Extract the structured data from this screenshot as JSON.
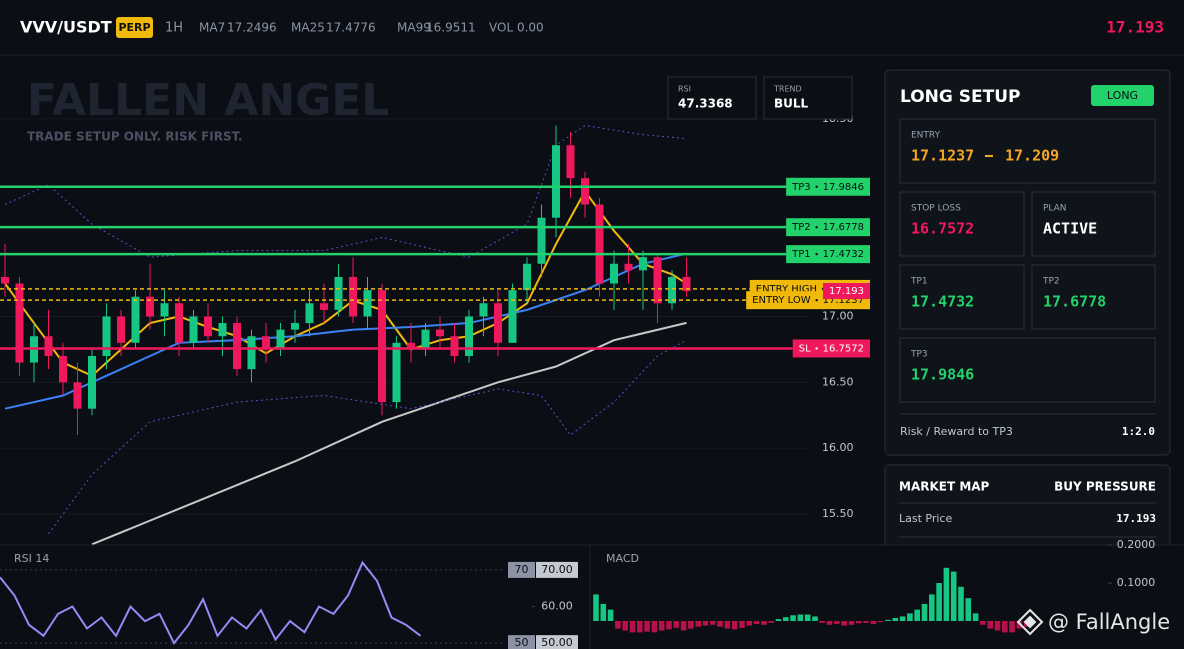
{
  "header": {
    "symbol": "VVV/USDT",
    "badge": "PERP",
    "interval": "1H",
    "volume": "VOL 0.00"
  },
  "stats": [
    {
      "label": "RSI",
      "value": "47.3368"
    },
    {
      "label": "TREND",
      "value": "BULL"
    }
  ],
  "setup": {
    "title": "LONG SETUP",
    "side": "LONG",
    "entry_label": "ENTRY",
    "plan_label": "PLAN",
    "plan": "ACTIVE",
    "stop_label": "STOP LOSS",
    "rr_label": "Risk / Reward to TP3",
    "rr": "1:2.0"
  },
  "market_map": {
    "title": "MARKET MAP",
    "signal": "BUY PRESSURE",
    "last_label": "Last Price"
  },
  "watermark": "@ FallAngle",
  "chart_data": [
    {
      "type": "candlestick",
      "title": "FALLEN ANGEL",
      "subtitle": "TRADE SETUP ONLY. RISK FIRST.",
      "open": [
        17.3,
        17.25,
        16.65,
        16.85,
        16.7,
        16.5,
        16.3,
        16.7,
        17.0,
        16.8,
        17.15,
        17.0,
        17.1,
        16.8,
        17.0,
        16.85,
        16.95,
        16.6,
        16.85,
        16.75,
        16.9,
        16.95,
        17.1,
        17.05,
        17.3,
        17.0,
        17.2,
        16.35,
        16.8,
        16.75,
        16.9,
        16.85,
        16.7,
        17.0,
        17.1,
        16.8,
        17.2,
        17.4,
        17.75,
        18.3,
        18.05,
        17.85,
        17.25,
        17.4,
        17.35,
        17.45,
        17.1,
        17.3
      ],
      "high": [
        17.55,
        17.3,
        16.95,
        17.05,
        16.8,
        16.65,
        16.75,
        17.1,
        17.05,
        17.2,
        17.4,
        17.2,
        17.15,
        17.05,
        17.1,
        17.0,
        17.0,
        16.9,
        16.95,
        16.95,
        17.05,
        17.2,
        17.25,
        17.4,
        17.45,
        17.3,
        17.25,
        16.85,
        16.95,
        16.95,
        17.0,
        16.95,
        17.05,
        17.15,
        17.2,
        17.25,
        17.45,
        17.85,
        18.45,
        18.4,
        18.1,
        17.9,
        17.5,
        17.55,
        17.5,
        17.48,
        17.35,
        17.45
      ],
      "low": [
        17.15,
        16.55,
        16.5,
        16.6,
        16.4,
        16.1,
        16.25,
        16.6,
        16.7,
        16.75,
        16.9,
        16.85,
        16.7,
        16.75,
        16.8,
        16.7,
        16.55,
        16.5,
        16.65,
        16.7,
        16.8,
        16.85,
        16.95,
        17.0,
        16.95,
        16.9,
        16.25,
        16.3,
        16.65,
        16.7,
        16.75,
        16.65,
        16.65,
        16.85,
        16.7,
        16.8,
        17.1,
        17.3,
        17.6,
        17.9,
        17.75,
        17.15,
        17.05,
        17.25,
        17.05,
        16.95,
        17.05,
        17.15
      ],
      "close": [
        17.25,
        16.65,
        16.85,
        16.7,
        16.5,
        16.3,
        16.7,
        17.0,
        16.8,
        17.15,
        17.0,
        17.1,
        16.8,
        17.0,
        16.85,
        16.95,
        16.6,
        16.85,
        16.75,
        16.9,
        16.95,
        17.1,
        17.05,
        17.3,
        17.0,
        17.2,
        16.35,
        16.8,
        16.75,
        16.9,
        16.85,
        16.7,
        17.0,
        17.1,
        16.8,
        17.2,
        17.4,
        17.75,
        18.3,
        18.05,
        17.85,
        17.25,
        17.4,
        17.35,
        17.45,
        17.1,
        17.3,
        17.193
      ],
      "up_color": "#16c784",
      "down_color": "#f0185c",
      "ylim": [
        15.265,
        18.985
      ],
      "yticks": [
        {
          "value": 15.5,
          "label": "15.50"
        },
        {
          "value": 16,
          "label": "16.00"
        },
        {
          "value": 16.5,
          "label": "16.50"
        },
        {
          "value": 17,
          "label": "17.00"
        },
        {
          "value": 18.5,
          "label": "18.50"
        }
      ],
      "overlays": [
        {
          "name": "MA7",
          "color": "#f0b90b",
          "x": [
            0,
            2,
            4,
            6,
            8,
            10,
            12,
            14,
            16,
            18,
            20,
            22,
            24,
            26,
            28,
            30,
            32,
            34,
            36,
            38,
            40,
            42,
            44,
            46,
            47
          ],
          "values": [
            17.25,
            16.95,
            16.65,
            16.55,
            16.75,
            16.95,
            17.0,
            16.92,
            16.85,
            16.72,
            16.85,
            16.95,
            17.12,
            17.05,
            16.75,
            16.82,
            16.85,
            16.95,
            17.1,
            17.55,
            17.95,
            17.65,
            17.4,
            17.32,
            17.2496
          ]
        },
        {
          "name": "MA25",
          "color": "#3b82f6",
          "x": [
            0,
            4,
            8,
            12,
            16,
            20,
            24,
            28,
            32,
            36,
            40,
            44,
            47
          ],
          "values": [
            16.3,
            16.4,
            16.6,
            16.8,
            16.82,
            16.85,
            16.9,
            16.92,
            16.95,
            17.05,
            17.2,
            17.4,
            17.4776
          ]
        },
        {
          "name": "MA99",
          "color": "#c8c8c8",
          "x": [
            6,
            10,
            16,
            20,
            26,
            30,
            34,
            38,
            42,
            47
          ],
          "values": [
            15.27,
            15.45,
            15.72,
            15.9,
            16.2,
            16.35,
            16.5,
            16.62,
            16.82,
            16.9511
          ]
        },
        {
          "color": "#5b4fc4",
          "dash": true,
          "x": [
            0,
            3,
            6,
            10,
            16,
            22,
            26,
            32,
            36,
            38,
            40,
            44,
            47
          ],
          "values": [
            17.85,
            18.0,
            17.7,
            17.45,
            17.5,
            17.5,
            17.6,
            17.45,
            17.7,
            18.3,
            18.45,
            18.38,
            18.35
          ]
        },
        {
          "color": "#5b4fc4",
          "dash": true,
          "x": [
            3,
            6,
            10,
            16,
            22,
            28,
            34,
            37,
            39,
            42,
            45,
            47
          ],
          "values": [
            15.35,
            15.8,
            16.2,
            16.35,
            16.4,
            16.3,
            16.45,
            16.4,
            16.1,
            16.35,
            16.7,
            16.82
          ]
        }
      ],
      "levels": [
        {
          "name": "TP3",
          "value": 17.9846,
          "color": "#22d36b"
        },
        {
          "name": "TP2",
          "value": 17.6778,
          "color": "#22d36b"
        },
        {
          "name": "TP1",
          "value": 17.4732,
          "color": "#22d36b"
        },
        {
          "name": "ENTRY HIGH",
          "value": 17.209,
          "color": "#f0b90b",
          "dash": true
        },
        {
          "name": "ENTRY LOW",
          "value": 17.1237,
          "color": "#f0b90b",
          "dash": true
        },
        {
          "name": "SL",
          "value": 16.7572,
          "color": "#f0185c"
        }
      ],
      "last_price": 17.193,
      "last_price_color": "#f0185c"
    },
    {
      "type": "line",
      "title": "RSI 14",
      "color": "#9b87f5",
      "values": [
        68,
        63,
        55,
        52,
        58,
        60,
        54,
        57,
        52,
        60,
        56,
        58,
        50,
        55,
        62,
        52,
        57,
        54,
        59,
        51,
        56,
        53,
        60,
        58,
        63,
        72,
        67,
        57,
        55,
        52
      ],
      "ylim": [
        48.4,
        76.8
      ],
      "yticks": [
        {
          "value": 70,
          "label": "70.00"
        },
        {
          "value": 60,
          "label": "60.00"
        },
        {
          "value": 50,
          "label": "50.00"
        }
      ],
      "levels": [
        70,
        50
      ]
    },
    {
      "type": "bar",
      "title": "MACD",
      "values": [
        0.07,
        0.045,
        0.03,
        -0.02,
        -0.025,
        -0.03,
        -0.03,
        -0.028,
        -0.03,
        -0.025,
        -0.022,
        -0.018,
        -0.025,
        -0.02,
        -0.015,
        -0.012,
        -0.01,
        -0.015,
        -0.02,
        -0.022,
        -0.018,
        -0.012,
        -0.008,
        -0.01,
        -0.005,
        0.005,
        0.01,
        0.015,
        0.017,
        0.017,
        0.012,
        -0.005,
        -0.01,
        -0.008,
        -0.012,
        -0.01,
        -0.006,
        -0.005,
        -0.008,
        -0.003,
        0.003,
        0.008,
        0.012,
        0.02,
        0.03,
        0.045,
        0.07,
        0.1,
        0.14,
        0.13,
        0.09,
        0.06,
        0.02,
        -0.01,
        -0.02,
        -0.025,
        -0.03,
        -0.03,
        -0.02,
        -0.015
      ],
      "positive_color": "#16c784",
      "negative_color": "#b5124a",
      "ylim": [
        -0.0737,
        0.2
      ],
      "yticks": [
        {
          "value": 0.1,
          "label": "0.1000"
        },
        {
          "value": 0.2,
          "label": "0.2000"
        }
      ]
    }
  ]
}
